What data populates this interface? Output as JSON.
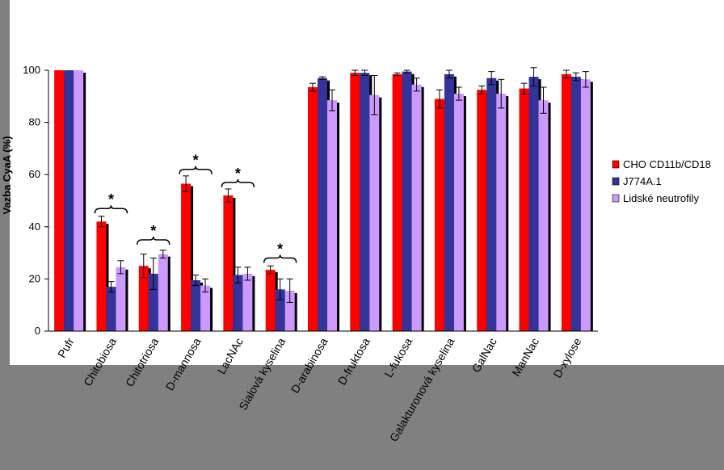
{
  "colors": {
    "series": [
      "#ff0000",
      "#333399",
      "#cc99ff"
    ],
    "shadow": "#000000",
    "axis": "#000000",
    "background": "#808080",
    "panel": "#ffffff"
  },
  "chart_data": {
    "type": "bar",
    "ylabel": "Vazba CyaA (%)",
    "ylim": [
      0,
      100
    ],
    "yticks": [
      0,
      20,
      40,
      60,
      80,
      100
    ],
    "categories": [
      "Pufr",
      "Chitobiosa",
      "Chitotriosa",
      "D-mannosa",
      "LacNAc",
      "Sialová kyselina",
      "D-arabinosa",
      "D-fruktosa",
      "L-fukosa",
      "Galakturonová kyselina",
      "GalNac",
      "ManNac",
      "D-xylose"
    ],
    "series": [
      {
        "name": "CHO CD11b/CD18",
        "values": [
          100,
          42,
          25,
          56.5,
          52,
          23.5,
          93.5,
          99,
          98.5,
          89,
          92.5,
          93,
          98.5
        ],
        "errors": [
          0,
          2,
          4.5,
          3,
          2.5,
          1.5,
          1.5,
          1,
          0.5,
          3.5,
          1.5,
          2,
          1.5
        ]
      },
      {
        "name": "J774A.1",
        "values": [
          100,
          17,
          22,
          19.5,
          21.5,
          16,
          97,
          99,
          99.5,
          98.5,
          97,
          97.5,
          97.5
        ],
        "errors": [
          0,
          2,
          6,
          2,
          3,
          4,
          0.5,
          1,
          0.5,
          1.5,
          2.5,
          3.5,
          1.5
        ]
      },
      {
        "name": "Lidské neutrofily",
        "values": [
          100,
          24.5,
          29.5,
          17.5,
          22,
          15.5,
          88.5,
          90.5,
          94.5,
          91,
          91,
          88.5,
          96.5
        ],
        "errors": [
          0,
          2.5,
          1.5,
          2.5,
          2.5,
          4.5,
          4,
          7.5,
          2.5,
          2.5,
          5.5,
          5,
          3
        ]
      }
    ],
    "significance": [
      {
        "category": "Chitobiosa",
        "label": "*",
        "bracket_at": 47
      },
      {
        "category": "Chitotriosa",
        "label": "*",
        "bracket_at": 35
      },
      {
        "category": "D-mannosa",
        "label": "*",
        "bracket_at": 62
      },
      {
        "category": "LacNAc",
        "label": "*",
        "bracket_at": 57
      },
      {
        "category": "Sialová kyselina",
        "label": "*",
        "bracket_at": 28
      }
    ],
    "legend_position": "right",
    "grid": false
  }
}
